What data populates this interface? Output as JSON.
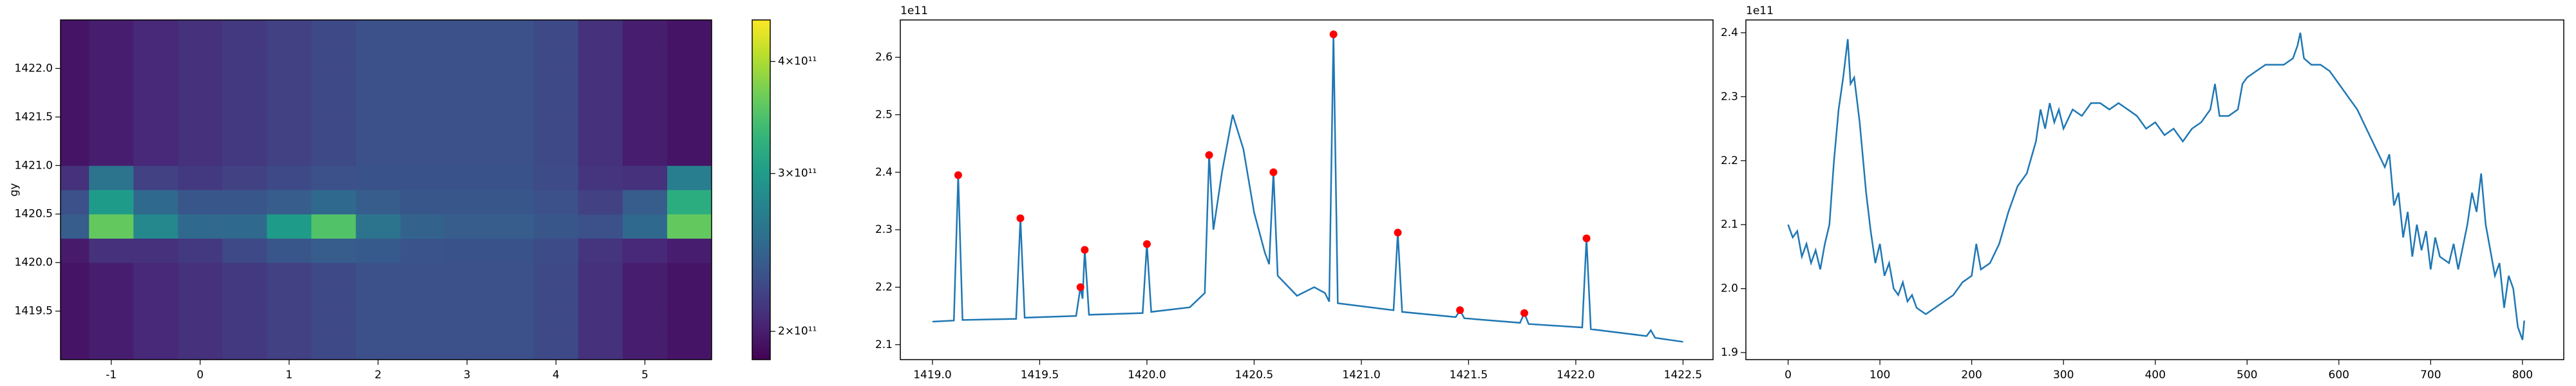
{
  "chart_data": [
    {
      "type": "heatmap",
      "ylabel": "gy",
      "xlim": [
        -1.57,
        5.75
      ],
      "ylim": [
        1419.0,
        1422.5
      ],
      "xticks": [
        -1,
        0,
        1,
        2,
        3,
        4,
        5
      ],
      "yticks": [
        1419.5,
        {
          "value": 1420,
          "label": "1420.0"
        },
        1420.5,
        {
          "value": 1421,
          "label": "1421.0"
        },
        1421.5,
        {
          "value": 1422,
          "label": "1422.0"
        }
      ],
      "x_edges": [
        -1.57,
        -1.25,
        -0.75,
        -0.25,
        0.25,
        0.75,
        1.25,
        1.75,
        2.25,
        2.75,
        3.25,
        3.75,
        4.25,
        4.75,
        5.25,
        5.75
      ],
      "y_edges": [
        1419.0,
        1419.25,
        1419.5,
        1419.75,
        1420.0,
        1420.25,
        1420.5,
        1420.75,
        1421.0,
        1421.25,
        1421.5,
        1421.75,
        1422.0,
        1422.25,
        1422.5
      ],
      "z": [
        [
          195000000000.0,
          200000000000.0,
          205000000000.0,
          210000000000.0,
          215000000000.0,
          220000000000.0,
          225000000000.0,
          230000000000.0,
          230000000000.0,
          230000000000.0,
          230000000000.0,
          225000000000.0,
          210000000000.0,
          200000000000.0,
          195000000000.0
        ],
        [
          195000000000.0,
          200000000000.0,
          205000000000.0,
          210000000000.0,
          215000000000.0,
          220000000000.0,
          225000000000.0,
          230000000000.0,
          230000000000.0,
          230000000000.0,
          230000000000.0,
          225000000000.0,
          210000000000.0,
          200000000000.0,
          195000000000.0
        ],
        [
          195000000000.0,
          200000000000.0,
          205000000000.0,
          210000000000.0,
          215000000000.0,
          220000000000.0,
          225000000000.0,
          230000000000.0,
          230000000000.0,
          230000000000.0,
          230000000000.0,
          225000000000.0,
          210000000000.0,
          200000000000.0,
          195000000000.0
        ],
        [
          195000000000.0,
          200000000000.0,
          205000000000.0,
          210000000000.0,
          215000000000.0,
          220000000000.0,
          225000000000.0,
          230000000000.0,
          230000000000.0,
          230000000000.0,
          230000000000.0,
          225000000000.0,
          210000000000.0,
          200000000000.0,
          195000000000.0
        ],
        [
          198000000000.0,
          210000000000.0,
          210000000000.0,
          215000000000.0,
          225000000000.0,
          235000000000.0,
          240000000000.0,
          238000000000.0,
          233000000000.0,
          232000000000.0,
          232000000000.0,
          227000000000.0,
          212000000000.0,
          205000000000.0,
          200000000000.0
        ],
        [
          240000000000.0,
          360000000000.0,
          280000000000.0,
          250000000000.0,
          250000000000.0,
          300000000000.0,
          350000000000.0,
          260000000000.0,
          245000000000.0,
          240000000000.0,
          240000000000.0,
          235000000000.0,
          230000000000.0,
          250000000000.0,
          360000000000.0
        ],
        [
          230000000000.0,
          300000000000.0,
          250000000000.0,
          235000000000.0,
          235000000000.0,
          240000000000.0,
          250000000000.0,
          240000000000.0,
          235000000000.0,
          235000000000.0,
          235000000000.0,
          230000000000.0,
          220000000000.0,
          240000000000.0,
          320000000000.0
        ],
        [
          210000000000.0,
          260000000000.0,
          220000000000.0,
          215000000000.0,
          220000000000.0,
          225000000000.0,
          230000000000.0,
          232000000000.0,
          232000000000.0,
          232000000000.0,
          232000000000.0,
          227000000000.0,
          212000000000.0,
          210000000000.0,
          270000000000.0
        ],
        [
          195000000000.0,
          200000000000.0,
          205000000000.0,
          210000000000.0,
          215000000000.0,
          220000000000.0,
          225000000000.0,
          230000000000.0,
          230000000000.0,
          230000000000.0,
          230000000000.0,
          225000000000.0,
          210000000000.0,
          200000000000.0,
          195000000000.0
        ],
        [
          195000000000.0,
          200000000000.0,
          205000000000.0,
          210000000000.0,
          215000000000.0,
          220000000000.0,
          225000000000.0,
          230000000000.0,
          230000000000.0,
          230000000000.0,
          230000000000.0,
          225000000000.0,
          210000000000.0,
          200000000000.0,
          195000000000.0
        ],
        [
          195000000000.0,
          200000000000.0,
          205000000000.0,
          210000000000.0,
          215000000000.0,
          220000000000.0,
          225000000000.0,
          230000000000.0,
          230000000000.0,
          230000000000.0,
          230000000000.0,
          225000000000.0,
          210000000000.0,
          200000000000.0,
          195000000000.0
        ],
        [
          195000000000.0,
          200000000000.0,
          205000000000.0,
          210000000000.0,
          215000000000.0,
          220000000000.0,
          225000000000.0,
          230000000000.0,
          230000000000.0,
          230000000000.0,
          230000000000.0,
          225000000000.0,
          210000000000.0,
          200000000000.0,
          195000000000.0
        ],
        [
          195000000000.0,
          200000000000.0,
          205000000000.0,
          210000000000.0,
          215000000000.0,
          220000000000.0,
          225000000000.0,
          230000000000.0,
          230000000000.0,
          230000000000.0,
          230000000000.0,
          225000000000.0,
          210000000000.0,
          200000000000.0,
          195000000000.0
        ],
        [
          195000000000.0,
          200000000000.0,
          205000000000.0,
          210000000000.0,
          215000000000.0,
          220000000000.0,
          225000000000.0,
          230000000000.0,
          230000000000.0,
          230000000000.0,
          230000000000.0,
          225000000000.0,
          210000000000.0,
          200000000000.0,
          195000000000.0
        ]
      ],
      "zlim": [
        186000000000.0,
        445000000000.0
      ],
      "zscale": "log",
      "colormap": "viridis",
      "zticks": [
        {
          "value": 200000000000.0,
          "label": "2×10¹¹"
        },
        {
          "value": 300000000000.0,
          "label": "3×10¹¹"
        },
        {
          "value": 400000000000.0,
          "label": "4×10¹¹"
        }
      ]
    },
    {
      "type": "line",
      "offset_label": "1e11",
      "color": "#1f77b4",
      "xlim": [
        1418.85,
        1422.64
      ],
      "ylim": [
        2.074,
        2.665
      ],
      "xticks": [
        {
          "value": 1419,
          "label": "1419.0"
        },
        1419.5,
        {
          "value": 1420,
          "label": "1420.0"
        },
        1420.5,
        {
          "value": 1421,
          "label": "1421.0"
        },
        1421.5,
        {
          "value": 1422,
          "label": "1422.0"
        },
        1422.5
      ],
      "yticks": [
        2.1,
        2.2,
        2.3,
        2.4,
        2.5,
        2.6
      ],
      "x": [
        1419.0,
        1419.1,
        1419.12,
        1419.14,
        1419.39,
        1419.41,
        1419.43,
        1419.67,
        1419.69,
        1419.7,
        1419.71,
        1419.73,
        1419.98,
        1420.0,
        1420.02,
        1420.2,
        1420.27,
        1420.29,
        1420.31,
        1420.35,
        1420.4,
        1420.45,
        1420.5,
        1420.55,
        1420.57,
        1420.59,
        1420.61,
        1420.7,
        1420.78,
        1420.83,
        1420.85,
        1420.87,
        1420.89,
        1421.15,
        1421.17,
        1421.19,
        1421.44,
        1421.46,
        1421.48,
        1421.74,
        1421.76,
        1421.78,
        1422.03,
        1422.05,
        1422.07,
        1422.33,
        1422.35,
        1422.37,
        1422.5
      ],
      "values": [
        2.14,
        2.142,
        2.395,
        2.143,
        2.145,
        2.32,
        2.147,
        2.15,
        2.2,
        2.18,
        2.265,
        2.152,
        2.155,
        2.275,
        2.157,
        2.165,
        2.19,
        2.43,
        2.3,
        2.4,
        2.5,
        2.44,
        2.33,
        2.26,
        2.24,
        2.4,
        2.22,
        2.185,
        2.2,
        2.19,
        2.175,
        2.64,
        2.172,
        2.16,
        2.295,
        2.157,
        2.148,
        2.16,
        2.146,
        2.138,
        2.155,
        2.136,
        2.13,
        2.285,
        2.127,
        2.115,
        2.125,
        2.112,
        2.105
      ],
      "peaks": {
        "color": "#ff0000",
        "x": [
          1419.12,
          1419.41,
          1419.69,
          1419.71,
          1420.0,
          1420.29,
          1420.59,
          1420.87,
          1421.17,
          1421.46,
          1421.76,
          1422.05
        ],
        "values": [
          2.395,
          2.32,
          2.2,
          2.265,
          2.275,
          2.43,
          2.4,
          2.64,
          2.295,
          2.16,
          2.155,
          2.285
        ]
      }
    },
    {
      "type": "line",
      "offset_label": "1e11",
      "color": "#1f77b4",
      "xlim": [
        -46,
        845
      ],
      "ylim": [
        1.889,
        2.42
      ],
      "xticks": [
        0,
        100,
        200,
        300,
        400,
        500,
        600,
        700,
        800
      ],
      "yticks": [
        1.9,
        {
          "value": 2,
          "label": "2.0"
        },
        2.1,
        2.2,
        2.3,
        2.4
      ],
      "x": [
        0,
        5,
        10,
        15,
        20,
        25,
        30,
        35,
        40,
        45,
        50,
        55,
        60,
        65,
        68,
        72,
        78,
        85,
        90,
        95,
        100,
        105,
        110,
        115,
        120,
        125,
        130,
        135,
        140,
        150,
        160,
        170,
        180,
        190,
        200,
        205,
        210,
        220,
        230,
        240,
        250,
        260,
        270,
        275,
        280,
        285,
        290,
        295,
        300,
        310,
        320,
        330,
        340,
        350,
        360,
        370,
        380,
        390,
        400,
        410,
        420,
        430,
        440,
        450,
        460,
        465,
        470,
        480,
        490,
        495,
        500,
        510,
        520,
        530,
        540,
        550,
        555,
        558,
        562,
        570,
        580,
        590,
        600,
        610,
        620,
        630,
        640,
        650,
        655,
        660,
        665,
        670,
        675,
        680,
        685,
        690,
        695,
        700,
        705,
        710,
        720,
        725,
        730,
        740,
        745,
        750,
        755,
        760,
        765,
        770,
        775,
        780,
        785,
        790,
        795,
        800,
        802
      ],
      "values": [
        2.1,
        2.08,
        2.09,
        2.05,
        2.07,
        2.04,
        2.06,
        2.03,
        2.07,
        2.1,
        2.2,
        2.28,
        2.33,
        2.39,
        2.32,
        2.33,
        2.26,
        2.15,
        2.09,
        2.04,
        2.07,
        2.02,
        2.04,
        2.0,
        1.99,
        2.01,
        1.98,
        1.99,
        1.97,
        1.96,
        1.97,
        1.98,
        1.99,
        2.01,
        2.02,
        2.07,
        2.03,
        2.04,
        2.07,
        2.12,
        2.16,
        2.18,
        2.23,
        2.28,
        2.25,
        2.29,
        2.26,
        2.28,
        2.25,
        2.28,
        2.27,
        2.29,
        2.29,
        2.28,
        2.29,
        2.28,
        2.27,
        2.25,
        2.26,
        2.24,
        2.25,
        2.23,
        2.25,
        2.26,
        2.28,
        2.32,
        2.27,
        2.27,
        2.28,
        2.32,
        2.33,
        2.34,
        2.35,
        2.35,
        2.35,
        2.36,
        2.38,
        2.4,
        2.36,
        2.35,
        2.35,
        2.34,
        2.32,
        2.3,
        2.28,
        2.25,
        2.22,
        2.19,
        2.21,
        2.13,
        2.15,
        2.08,
        2.12,
        2.05,
        2.1,
        2.06,
        2.09,
        2.03,
        2.08,
        2.05,
        2.04,
        2.07,
        2.03,
        2.1,
        2.15,
        2.12,
        2.18,
        2.1,
        2.06,
        2.02,
        2.04,
        1.97,
        2.02,
        2.0,
        1.94,
        1.92,
        1.95
      ]
    }
  ]
}
